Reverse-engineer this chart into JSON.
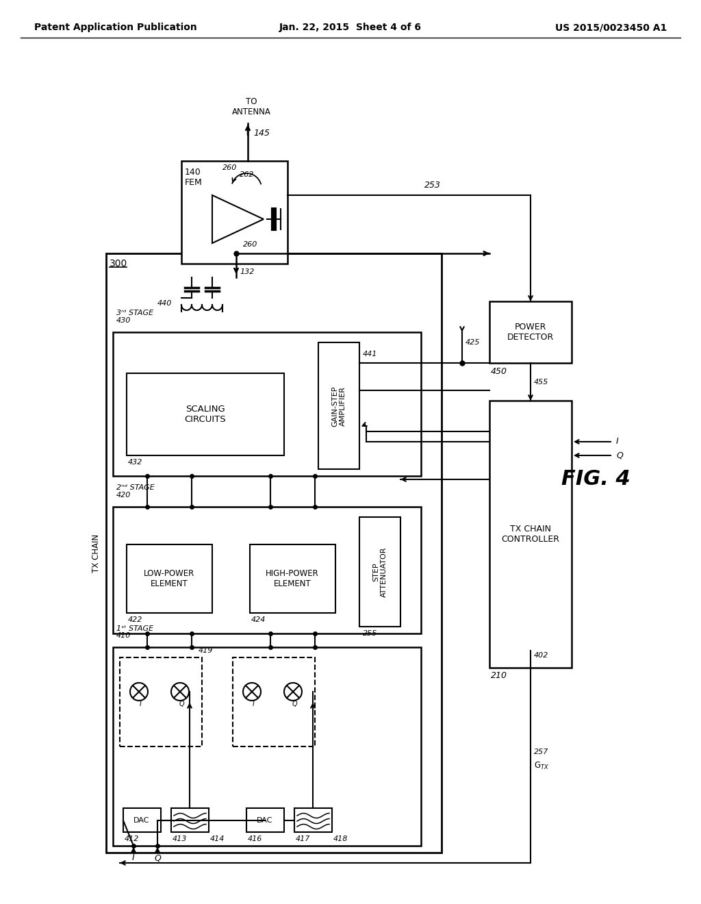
{
  "title_left": "Patent Application Publication",
  "title_center": "Jan. 22, 2015  Sheet 4 of 6",
  "title_right": "US 2015/0023450 A1",
  "fig_label": "FIG. 4",
  "background_color": "#ffffff",
  "line_color": "#000000",
  "text_color": "#000000"
}
